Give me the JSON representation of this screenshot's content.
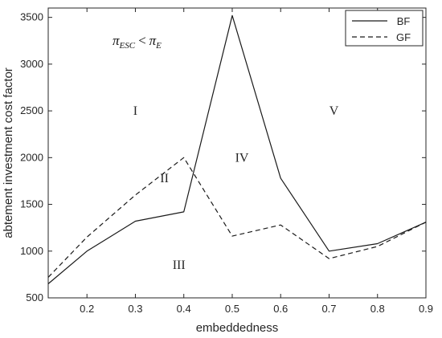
{
  "chart_data": {
    "type": "line",
    "title": "",
    "xlabel": "embeddedness",
    "ylabel": "abtement investment cost factor",
    "x": [
      0.12,
      0.2,
      0.3,
      0.4,
      0.5,
      0.6,
      0.7,
      0.8,
      0.9
    ],
    "xlim": [
      0.12,
      0.9
    ],
    "ylim": [
      500,
      3600
    ],
    "xticks": [
      "0.2",
      "0.3",
      "0.4",
      "0.5",
      "0.6",
      "0.7",
      "0.8",
      "0.9"
    ],
    "yticks": [
      "500",
      "1000",
      "1500",
      "2000",
      "2500",
      "3000",
      "3500"
    ],
    "grid": false,
    "legend_position": "top-right",
    "series": [
      {
        "name": "BF",
        "style": "solid",
        "values": [
          650,
          1000,
          1320,
          1420,
          3520,
          1780,
          1000,
          1080,
          1310
        ]
      },
      {
        "name": "GF",
        "style": "dashed",
        "values": [
          720,
          1150,
          1600,
          2000,
          1160,
          1280,
          920,
          1050,
          1310
        ]
      }
    ],
    "annotations": {
      "condition": {
        "pi": "π",
        "sub_left": "ESC",
        "op": "<",
        "sub_right": "E"
      },
      "regions": [
        {
          "label": "I",
          "x": 0.3,
          "y": 2500
        },
        {
          "label": "II",
          "x": 0.36,
          "y": 1780
        },
        {
          "label": "III",
          "x": 0.39,
          "y": 850
        },
        {
          "label": "IV",
          "x": 0.52,
          "y": 2000
        },
        {
          "label": "V",
          "x": 0.71,
          "y": 2500
        }
      ]
    },
    "colors": {
      "line": "#1a1a1a",
      "axis": "#262626"
    }
  }
}
